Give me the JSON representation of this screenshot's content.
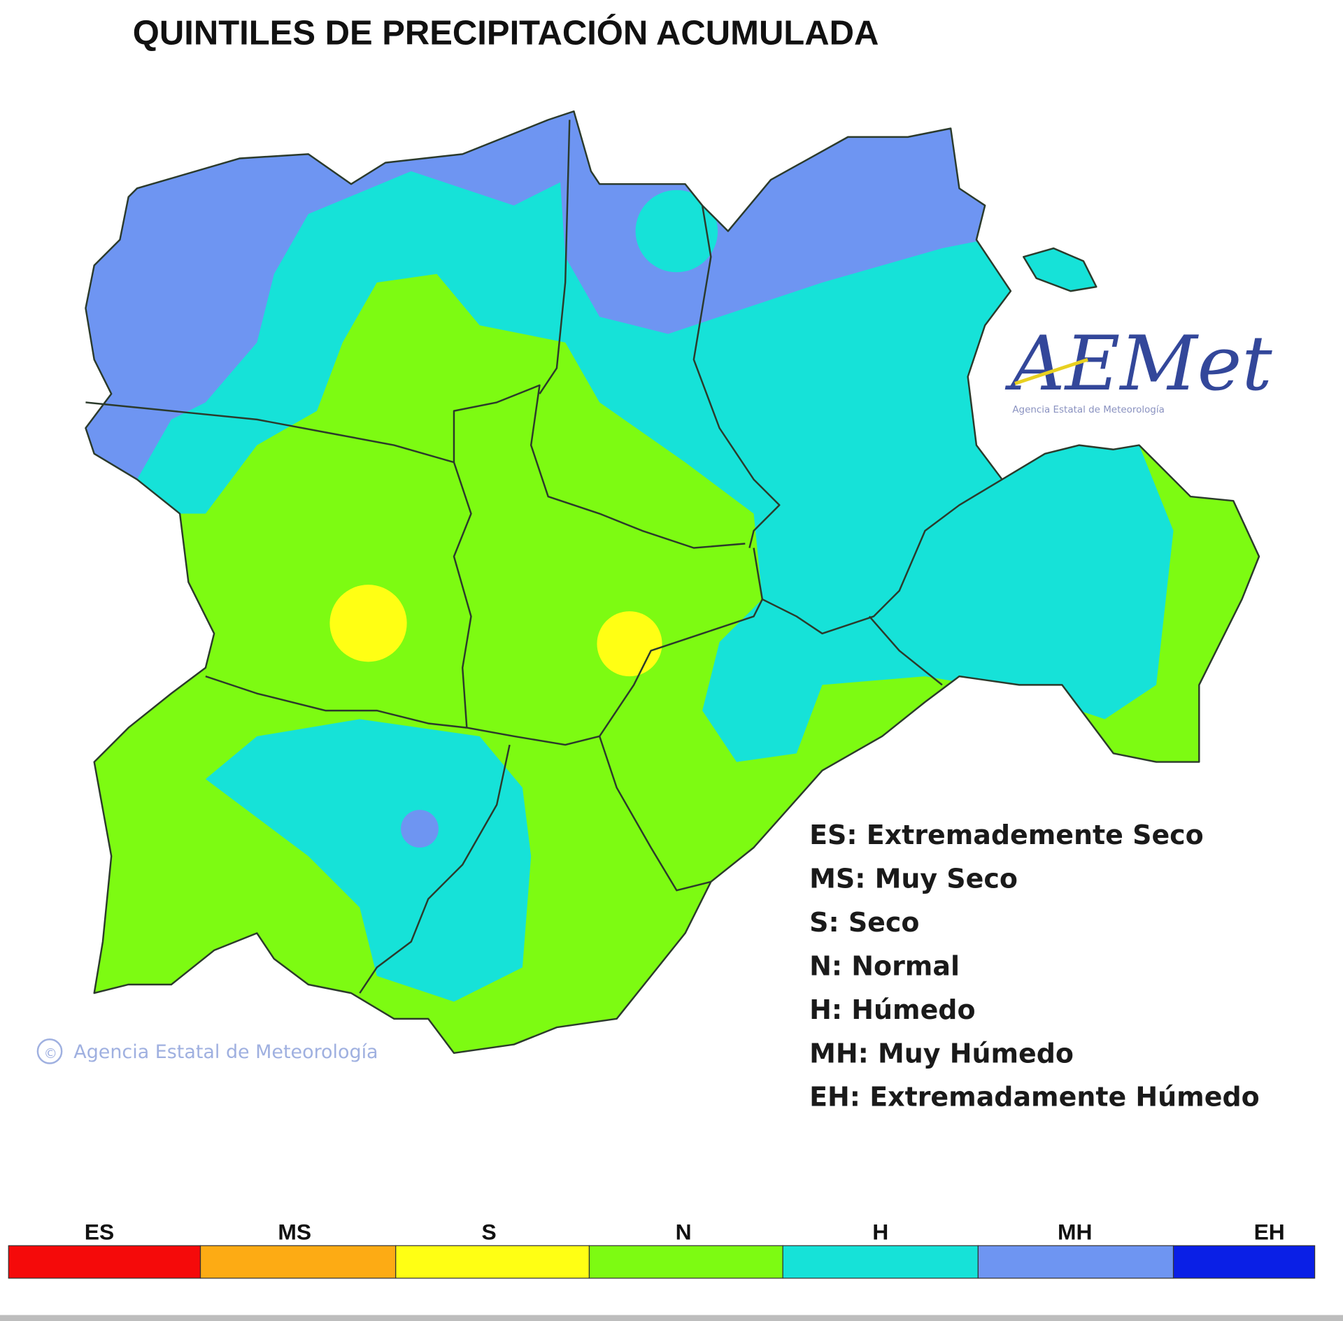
{
  "title": "QUINTILES DE PRECIPITACIÓN ACUMULADA",
  "logo": {
    "text": "AEMet",
    "subtitle": "Agencia Estatal de Meteorología"
  },
  "watermark": {
    "symbol": "©",
    "text": "Agencia Estatal de Meteorología"
  },
  "legend": {
    "entries": [
      "ES: Extremademente Seco",
      "MS: Muy Seco",
      "S: Seco",
      "N: Normal",
      "H: Húmedo",
      "MH: Muy Húmedo",
      "EH: Extremadamente Húmedo"
    ],
    "categories": [
      {
        "code": "ES",
        "color": "#f50a0a"
      },
      {
        "code": "MS",
        "color": "#fdab14"
      },
      {
        "code": "S",
        "color": "#ffff14"
      },
      {
        "code": "N",
        "color": "#7dfb12"
      },
      {
        "code": "H",
        "color": "#16e2d8"
      },
      {
        "code": "MH",
        "color": "#6e95f2"
      },
      {
        "code": "EH",
        "color": "#0a1fe6"
      }
    ]
  }
}
